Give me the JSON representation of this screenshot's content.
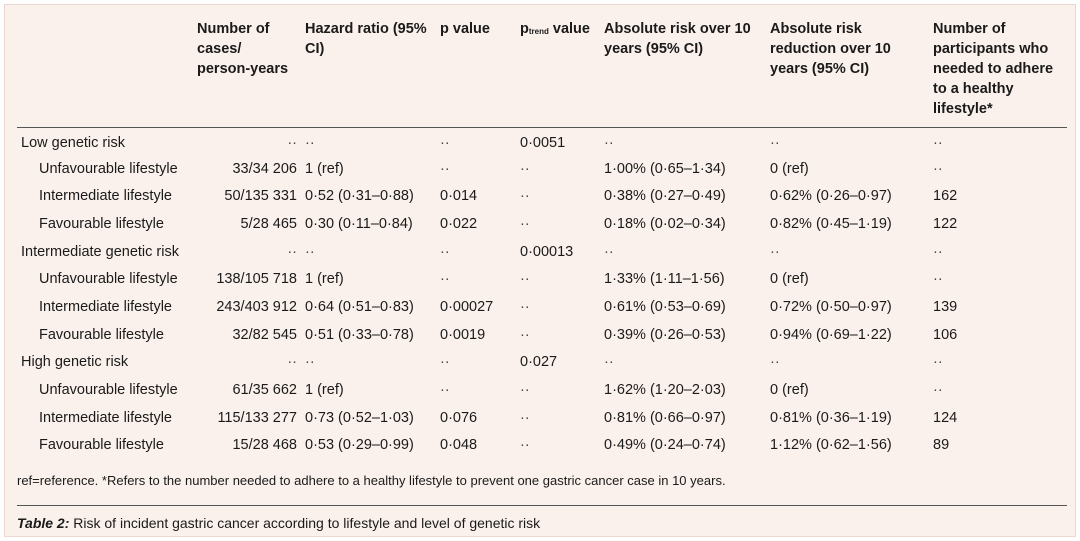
{
  "table": {
    "headers": [
      "",
      "Number of cases/ person-years",
      "Hazard ratio (95% CI)",
      "p value",
      "value",
      "Absolute risk over 10 years (95% CI)",
      "Absolute risk reduction over 10 years (95% CI)",
      "Number of participants who needed to adhere to a healthy lifestyle*"
    ],
    "ptrend_prefix": "p",
    "ptrend_sub": "trend",
    "rows": [
      {
        "kind": "group",
        "cells": [
          "Low genetic risk",
          "··",
          "··",
          "··",
          "0·0051",
          "··",
          "··",
          "··"
        ]
      },
      {
        "kind": "sub",
        "cells": [
          "Unfavourable lifestyle",
          "33/34 206",
          "1 (ref)",
          "··",
          "··",
          "1·00% (0·65–1·34)",
          "0 (ref)",
          "··"
        ]
      },
      {
        "kind": "sub",
        "cells": [
          "Intermediate lifestyle",
          "50/135 331",
          "0·52 (0·31–0·88)",
          "0·014",
          "··",
          "0·38% (0·27–0·49)",
          "0·62% (0·26–0·97)",
          "162"
        ]
      },
      {
        "kind": "sub",
        "cells": [
          "Favourable lifestyle",
          "5/28 465",
          "0·30 (0·11–0·84)",
          "0·022",
          "··",
          "0·18% (0·02–0·34)",
          "0·82% (0·45–1·19)",
          "122"
        ]
      },
      {
        "kind": "group",
        "cells": [
          "Intermediate genetic risk",
          "··",
          "··",
          "··",
          "0·00013",
          "··",
          "··",
          "··"
        ]
      },
      {
        "kind": "sub",
        "cells": [
          "Unfavourable lifestyle",
          "138/105 718",
          "1 (ref)",
          "··",
          "··",
          "1·33% (1·11–1·56)",
          "0 (ref)",
          "··"
        ]
      },
      {
        "kind": "sub",
        "cells": [
          "Intermediate lifestyle",
          "243/403 912",
          "0·64 (0·51–0·83)",
          "0·00027",
          "··",
          "0·61% (0·53–0·69)",
          "0·72% (0·50–0·97)",
          "139"
        ]
      },
      {
        "kind": "sub",
        "cells": [
          "Favourable lifestyle",
          "32/82 545",
          "0·51 (0·33–0·78)",
          "0·0019",
          "··",
          "0·39% (0·26–0·53)",
          "0·94% (0·69–1·22)",
          "106"
        ]
      },
      {
        "kind": "group",
        "cells": [
          "High genetic risk",
          "··",
          "··",
          "··",
          "0·027",
          "··",
          "··",
          "··"
        ]
      },
      {
        "kind": "sub",
        "cells": [
          "Unfavourable lifestyle",
          "61/35 662",
          "1 (ref)",
          "··",
          "··",
          "1·62% (1·20–2·03)",
          "0 (ref)",
          "··"
        ]
      },
      {
        "kind": "sub",
        "cells": [
          "Intermediate lifestyle",
          "115/133 277",
          "0·73 (0·52–1·03)",
          "0·076",
          "··",
          "0·81% (0·66–0·97)",
          "0·81% (0·36–1·19)",
          "124"
        ]
      },
      {
        "kind": "sub",
        "cells": [
          "Favourable lifestyle",
          "15/28 468",
          "0·53 (0·29–0·99)",
          "0·048",
          "··",
          "0·49% (0·24–0·74)",
          "1·12% (0·62–1·56)",
          "89"
        ]
      }
    ]
  },
  "footnote": "ref=reference. *Refers to the number needed to adhere to a healthy lifestyle to prevent one gastric cancer case in 10 years.",
  "caption": {
    "label": "Table 2:",
    "text": " Risk of incident gastric cancer according to lifestyle and level of genetic risk"
  }
}
